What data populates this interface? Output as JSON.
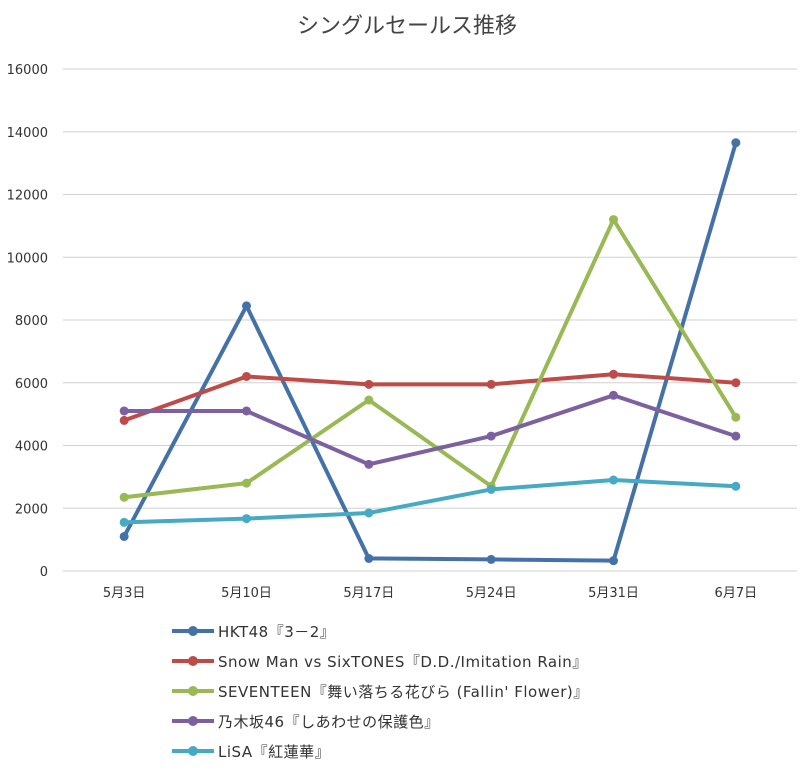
{
  "chart_data": {
    "type": "line",
    "title": "シングルセールス推移",
    "categories": [
      "5月3日",
      "5月10日",
      "5月17日",
      "5月24日",
      "5月31日",
      "6月7日"
    ],
    "ylim": [
      0,
      16000
    ],
    "yticks": [
      0,
      2000,
      4000,
      6000,
      8000,
      10000,
      12000,
      14000,
      16000
    ],
    "grid": true,
    "legend": "bottom",
    "series": [
      {
        "name": "HKT48『3－2』",
        "color": "#4472a8",
        "values": [
          1100,
          8450,
          400,
          370,
          330,
          13650
        ]
      },
      {
        "name": "Snow Man vs SixTONES『D.D./Imitation Rain』",
        "color": "#be4b48",
        "values": [
          4800,
          6200,
          5950,
          5950,
          6270,
          6000
        ]
      },
      {
        "name": "SEVENTEEN『舞い落ちる花びら (Fallin' Flower)』",
        "color": "#98b954",
        "values": [
          2350,
          2800,
          5450,
          2700,
          11200,
          4900
        ]
      },
      {
        "name": "乃木坂46『しあわせの保護色』",
        "color": "#7d60a0",
        "values": [
          5100,
          5100,
          3400,
          4300,
          5600,
          4300
        ]
      },
      {
        "name": "LiSA『紅蓮華』",
        "color": "#46aac4",
        "values": [
          1550,
          1670,
          1850,
          2600,
          2900,
          2700
        ]
      }
    ]
  }
}
